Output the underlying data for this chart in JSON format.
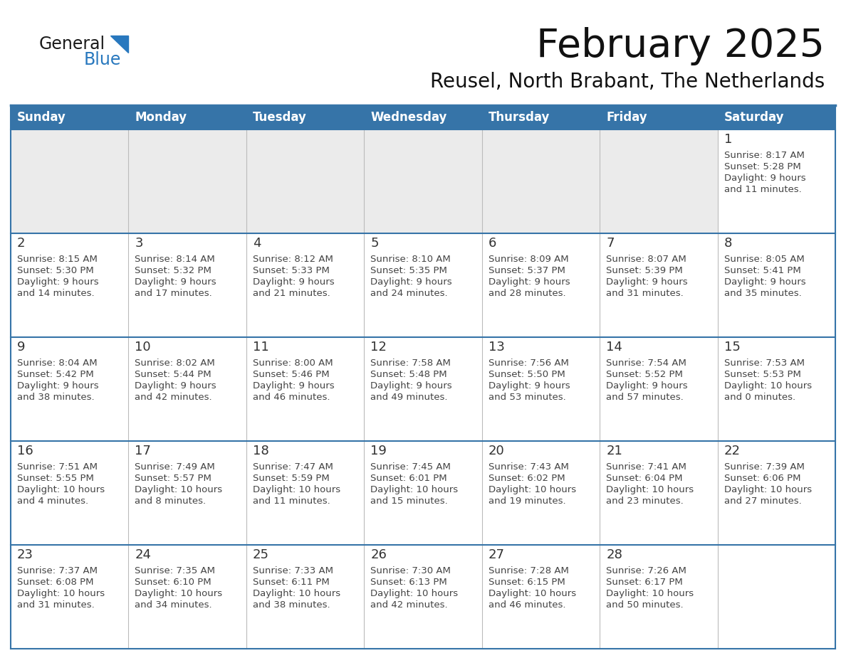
{
  "title": "February 2025",
  "subtitle": "Reusel, North Brabant, The Netherlands",
  "days_of_week": [
    "Sunday",
    "Monday",
    "Tuesday",
    "Wednesday",
    "Thursday",
    "Friday",
    "Saturday"
  ],
  "header_bg": "#3674A8",
  "header_text_color": "#FFFFFF",
  "cell_bg_white": "#FFFFFF",
  "cell_bg_gray": "#EBEBEB",
  "border_color": "#3674A8",
  "day_num_color": "#333333",
  "info_text_color": "#444444",
  "logo_general_color": "#1a1a1a",
  "logo_blue_color": "#2878BE",
  "title_color": "#111111",
  "subtitle_color": "#111111",
  "weeks": [
    [
      {
        "day": null,
        "info": ""
      },
      {
        "day": null,
        "info": ""
      },
      {
        "day": null,
        "info": ""
      },
      {
        "day": null,
        "info": ""
      },
      {
        "day": null,
        "info": ""
      },
      {
        "day": null,
        "info": ""
      },
      {
        "day": 1,
        "info": "Sunrise: 8:17 AM\nSunset: 5:28 PM\nDaylight: 9 hours\nand 11 minutes."
      }
    ],
    [
      {
        "day": 2,
        "info": "Sunrise: 8:15 AM\nSunset: 5:30 PM\nDaylight: 9 hours\nand 14 minutes."
      },
      {
        "day": 3,
        "info": "Sunrise: 8:14 AM\nSunset: 5:32 PM\nDaylight: 9 hours\nand 17 minutes."
      },
      {
        "day": 4,
        "info": "Sunrise: 8:12 AM\nSunset: 5:33 PM\nDaylight: 9 hours\nand 21 minutes."
      },
      {
        "day": 5,
        "info": "Sunrise: 8:10 AM\nSunset: 5:35 PM\nDaylight: 9 hours\nand 24 minutes."
      },
      {
        "day": 6,
        "info": "Sunrise: 8:09 AM\nSunset: 5:37 PM\nDaylight: 9 hours\nand 28 minutes."
      },
      {
        "day": 7,
        "info": "Sunrise: 8:07 AM\nSunset: 5:39 PM\nDaylight: 9 hours\nand 31 minutes."
      },
      {
        "day": 8,
        "info": "Sunrise: 8:05 AM\nSunset: 5:41 PM\nDaylight: 9 hours\nand 35 minutes."
      }
    ],
    [
      {
        "day": 9,
        "info": "Sunrise: 8:04 AM\nSunset: 5:42 PM\nDaylight: 9 hours\nand 38 minutes."
      },
      {
        "day": 10,
        "info": "Sunrise: 8:02 AM\nSunset: 5:44 PM\nDaylight: 9 hours\nand 42 minutes."
      },
      {
        "day": 11,
        "info": "Sunrise: 8:00 AM\nSunset: 5:46 PM\nDaylight: 9 hours\nand 46 minutes."
      },
      {
        "day": 12,
        "info": "Sunrise: 7:58 AM\nSunset: 5:48 PM\nDaylight: 9 hours\nand 49 minutes."
      },
      {
        "day": 13,
        "info": "Sunrise: 7:56 AM\nSunset: 5:50 PM\nDaylight: 9 hours\nand 53 minutes."
      },
      {
        "day": 14,
        "info": "Sunrise: 7:54 AM\nSunset: 5:52 PM\nDaylight: 9 hours\nand 57 minutes."
      },
      {
        "day": 15,
        "info": "Sunrise: 7:53 AM\nSunset: 5:53 PM\nDaylight: 10 hours\nand 0 minutes."
      }
    ],
    [
      {
        "day": 16,
        "info": "Sunrise: 7:51 AM\nSunset: 5:55 PM\nDaylight: 10 hours\nand 4 minutes."
      },
      {
        "day": 17,
        "info": "Sunrise: 7:49 AM\nSunset: 5:57 PM\nDaylight: 10 hours\nand 8 minutes."
      },
      {
        "day": 18,
        "info": "Sunrise: 7:47 AM\nSunset: 5:59 PM\nDaylight: 10 hours\nand 11 minutes."
      },
      {
        "day": 19,
        "info": "Sunrise: 7:45 AM\nSunset: 6:01 PM\nDaylight: 10 hours\nand 15 minutes."
      },
      {
        "day": 20,
        "info": "Sunrise: 7:43 AM\nSunset: 6:02 PM\nDaylight: 10 hours\nand 19 minutes."
      },
      {
        "day": 21,
        "info": "Sunrise: 7:41 AM\nSunset: 6:04 PM\nDaylight: 10 hours\nand 23 minutes."
      },
      {
        "day": 22,
        "info": "Sunrise: 7:39 AM\nSunset: 6:06 PM\nDaylight: 10 hours\nand 27 minutes."
      }
    ],
    [
      {
        "day": 23,
        "info": "Sunrise: 7:37 AM\nSunset: 6:08 PM\nDaylight: 10 hours\nand 31 minutes."
      },
      {
        "day": 24,
        "info": "Sunrise: 7:35 AM\nSunset: 6:10 PM\nDaylight: 10 hours\nand 34 minutes."
      },
      {
        "day": 25,
        "info": "Sunrise: 7:33 AM\nSunset: 6:11 PM\nDaylight: 10 hours\nand 38 minutes."
      },
      {
        "day": 26,
        "info": "Sunrise: 7:30 AM\nSunset: 6:13 PM\nDaylight: 10 hours\nand 42 minutes."
      },
      {
        "day": 27,
        "info": "Sunrise: 7:28 AM\nSunset: 6:15 PM\nDaylight: 10 hours\nand 46 minutes."
      },
      {
        "day": 28,
        "info": "Sunrise: 7:26 AM\nSunset: 6:17 PM\nDaylight: 10 hours\nand 50 minutes."
      },
      {
        "day": null,
        "info": ""
      }
    ]
  ]
}
